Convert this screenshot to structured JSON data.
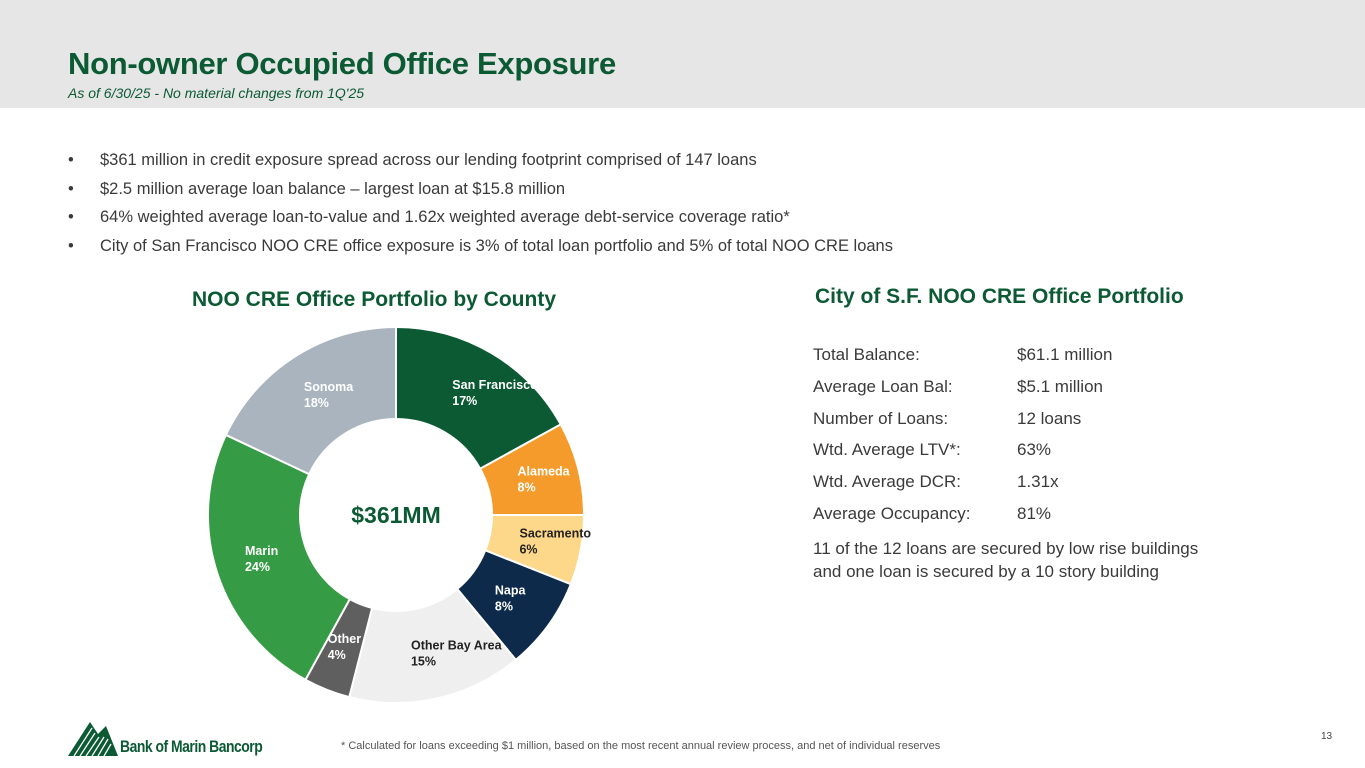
{
  "header": {
    "title": "Non-owner Occupied Office Exposure",
    "subtitle": "As of 6/30/25 - No material changes from 1Q'25"
  },
  "bullets": [
    "$361 million in credit exposure spread across our lending footprint comprised of 147 loans",
    "$2.5 million average loan balance – largest loan at $15.8 million",
    "64% weighted average loan-to-value and 1.62x weighted average debt-service coverage ratio*",
    "City of San Francisco NOO CRE office exposure is 3% of total loan portfolio and 5% of total NOO CRE loans"
  ],
  "bullet_glyph": "•",
  "chart_data": {
    "type": "pie",
    "title": "NOO CRE Office Portfolio by County",
    "center_label": "$361MM",
    "donut": true,
    "start": "12 o'clock, clockwise",
    "slices": [
      {
        "name": "San Francisco",
        "pct_label": "17%",
        "value": 17,
        "color": "#0b5a33",
        "label_color": "#ffffff"
      },
      {
        "name": "Alameda",
        "pct_label": "8%",
        "value": 8,
        "color": "#f59b2b",
        "label_color": "#ffffff"
      },
      {
        "name": "Sacramento",
        "pct_label": "6%",
        "value": 6,
        "color": "#fdd78a",
        "label_color": "#222222"
      },
      {
        "name": "Napa",
        "pct_label": "8%",
        "value": 8,
        "color": "#0d2a4a",
        "label_color": "#ffffff"
      },
      {
        "name": "Other Bay Area",
        "pct_label": "15%",
        "value": 15,
        "color": "#efefef",
        "label_color": "#222222"
      },
      {
        "name": "Other",
        "pct_label": "4%",
        "value": 4,
        "color": "#5f5f5f",
        "label_color": "#ffffff"
      },
      {
        "name": "Marin",
        "pct_label": "24%",
        "value": 24,
        "color": "#369b45",
        "label_color": "#ffffff"
      },
      {
        "name": "Sonoma",
        "pct_label": "18%",
        "value": 18,
        "color": "#aab4be",
        "label_color": "#ffffff"
      }
    ]
  },
  "sf_portfolio": {
    "title": "City of S.F. NOO CRE Office Portfolio",
    "rows": [
      {
        "label": "Total Balance:",
        "value": "$61.1 million"
      },
      {
        "label": "Average Loan Bal:",
        "value": "$5.1 million"
      },
      {
        "label": "Number of Loans:",
        "value": "12 loans"
      },
      {
        "label": "Wtd. Average LTV*:",
        "value": "63%"
      },
      {
        "label": "Wtd. Average DCR:",
        "value": "1.31x"
      },
      {
        "label": "Average Occupancy:",
        "value": "81%"
      }
    ],
    "note": "11 of the 12 loans are secured by low rise buildings and one loan is secured by a 10 story building"
  },
  "footer": {
    "logo_text": "Bank of Marin Bancorp",
    "footnote": "* Calculated for loans exceeding $1 million, based on the most recent annual review process, and net of individual reserves",
    "page_number": "13"
  },
  "colors": {
    "brand_green": "#0b5a33",
    "header_band": "#e6e6e6",
    "body_text": "#3a3a3a"
  }
}
